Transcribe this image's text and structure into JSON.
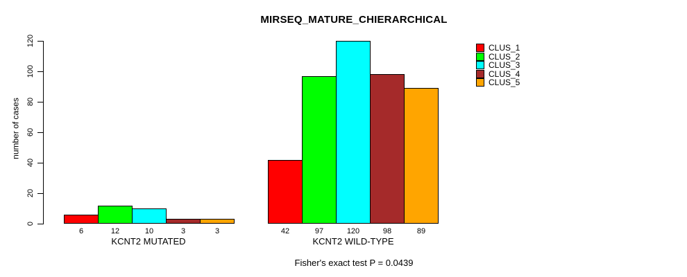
{
  "title": "MIRSEQ_MATURE_CHIERARCHICAL",
  "footer": "Fisher's exact test P = 0.0439",
  "chart_data": {
    "type": "bar",
    "title": "MIRSEQ_MATURE_CHIERARCHICAL",
    "xlabel": "",
    "ylabel": "number of cases",
    "ylim": [
      0,
      120
    ],
    "yticks": [
      0,
      20,
      40,
      60,
      80,
      100,
      120
    ],
    "grid": false,
    "legend_position": "right",
    "groups": [
      {
        "label": "KCNT2 MUTATED",
        "values": [
          6,
          12,
          10,
          3,
          3
        ]
      },
      {
        "label": "KCNT2 WILD-TYPE",
        "values": [
          42,
          97,
          120,
          98,
          89
        ]
      }
    ],
    "series": [
      {
        "name": "CLUS_1",
        "color": "#FF0000"
      },
      {
        "name": "CLUS_2",
        "color": "#00FF00"
      },
      {
        "name": "CLUS_3",
        "color": "#00FFFF"
      },
      {
        "name": "CLUS_4",
        "color": "#A52A2A"
      },
      {
        "name": "CLUS_5",
        "color": "#FFA500"
      }
    ],
    "annotation": "Fisher's exact test P = 0.0439"
  }
}
